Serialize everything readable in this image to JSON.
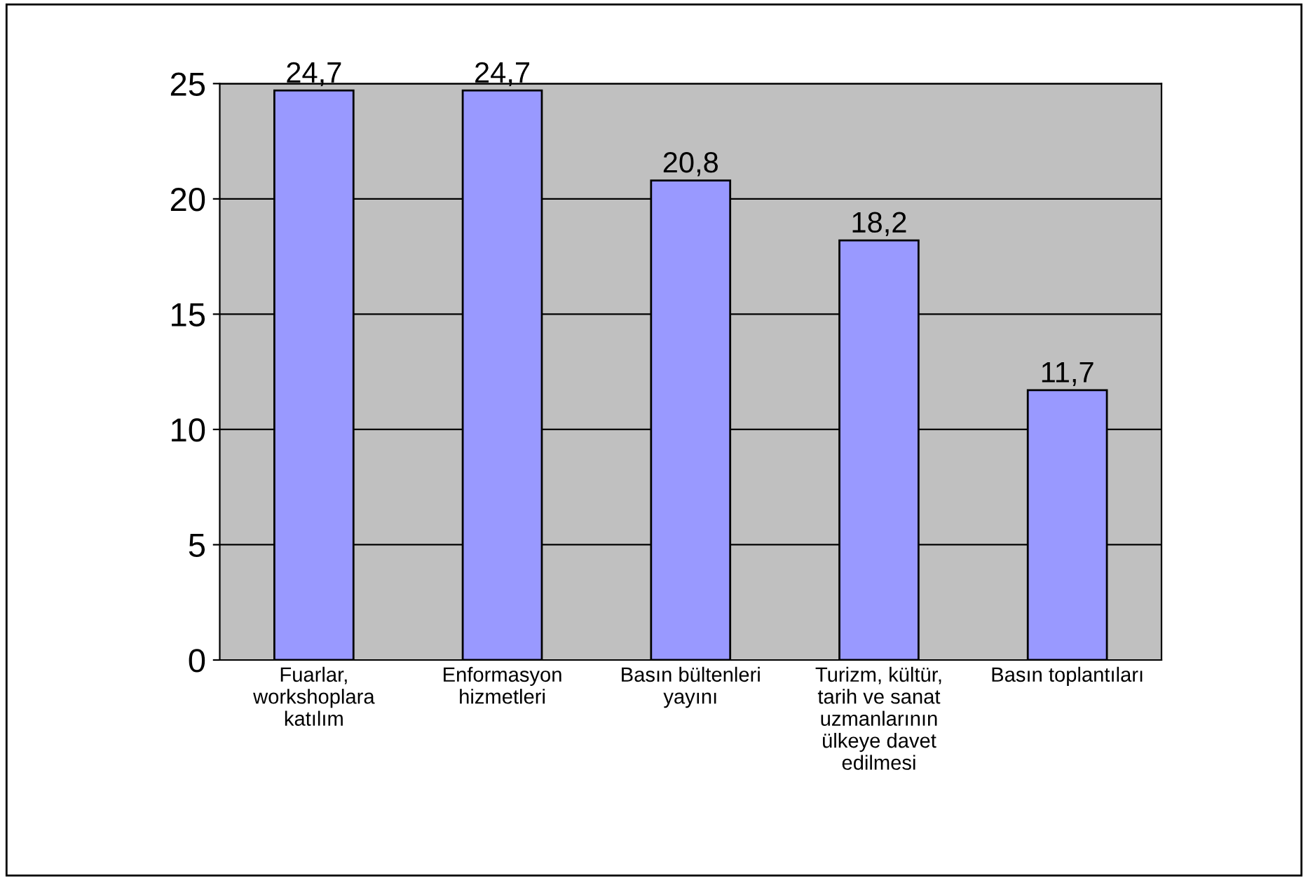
{
  "chart_data": {
    "type": "bar",
    "categories": [
      "Fuarlar,\nworkshoplara\nkatılım",
      "Enformasyon\nhizmetleri",
      "Basın bültenleri\nyayını",
      "Turizm, kültür,\ntarih ve sanat\nuzmanlarının\nülkeye davet\nedilmesi",
      "Basın toplantıları"
    ],
    "values": [
      24.7,
      24.7,
      20.8,
      18.2,
      11.7
    ],
    "value_labels": [
      "24,7",
      "24,7",
      "20,8",
      "18,2",
      "11,7"
    ],
    "color": "#9999ff",
    "ylim": [
      0,
      25
    ],
    "yticks": [
      0,
      5,
      10,
      15,
      20,
      25
    ],
    "grid": "y",
    "legend": false
  }
}
